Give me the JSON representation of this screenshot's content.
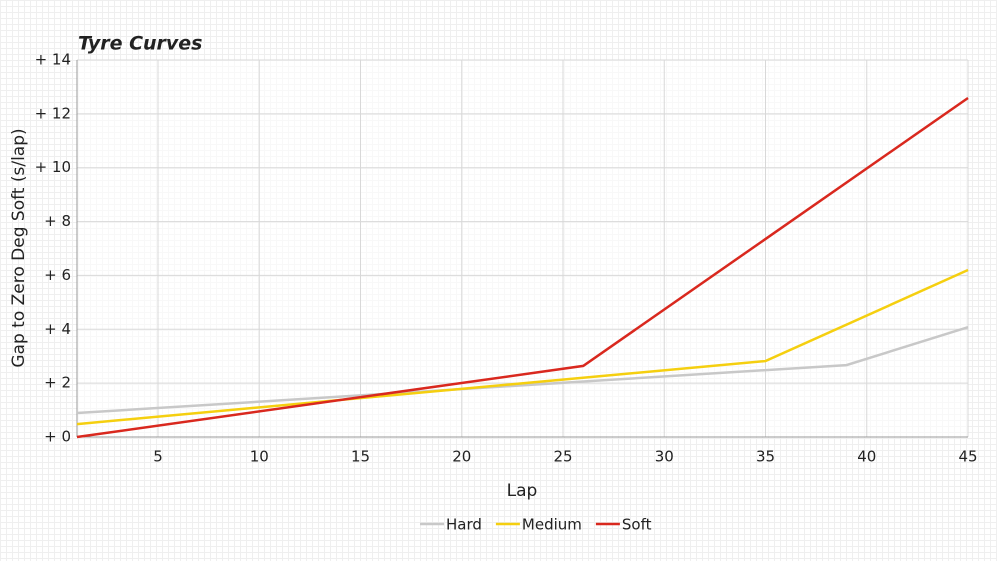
{
  "chart_data": {
    "type": "line",
    "title": "Tyre Curves",
    "x_label": "Lap",
    "y_label": "Gap to Zero Deg Soft (s/lap)",
    "xlim": [
      1,
      45
    ],
    "xticks": [
      5,
      10,
      15,
      20,
      25,
      30,
      35,
      40,
      45
    ],
    "ylim": [
      0,
      14
    ],
    "yticks": [
      {
        "value": 0,
        "label": "+ 0"
      },
      {
        "value": 2,
        "label": "+ 2"
      },
      {
        "value": 4,
        "label": "+ 4"
      },
      {
        "value": 6,
        "label": "+ 6"
      },
      {
        "value": 8,
        "label": "+ 8"
      },
      {
        "value": 10,
        "label": "+ 10"
      },
      {
        "value": 12,
        "label": "+ 12"
      },
      {
        "value": 14,
        "label": "+ 14"
      }
    ],
    "grid": true,
    "legend": "bottom",
    "series": [
      {
        "name": "Hard",
        "color": "#c8c8c8",
        "x": [
          1,
          39,
          45
        ],
        "values": [
          0.89,
          2.67,
          4.08
        ]
      },
      {
        "name": "Medium",
        "color": "#f5cf0f",
        "x": [
          1,
          35,
          45
        ],
        "values": [
          0.48,
          2.82,
          6.2
        ]
      },
      {
        "name": "Soft",
        "color": "#d9281e",
        "x": [
          1,
          26,
          45
        ],
        "values": [
          0.0,
          2.64,
          12.59
        ]
      }
    ]
  }
}
